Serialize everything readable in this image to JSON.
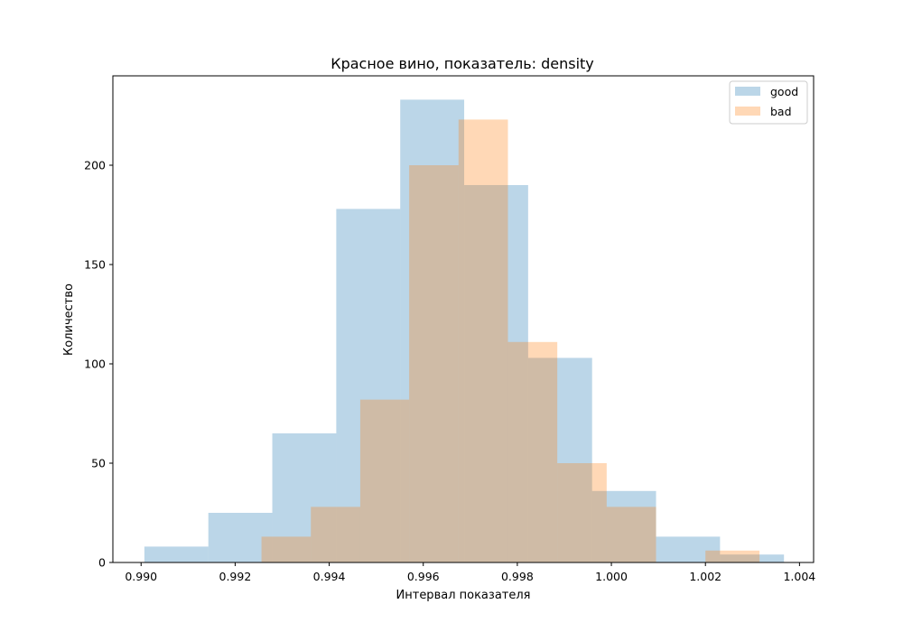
{
  "chart_data": {
    "type": "histogram",
    "title": "Красное вино, показатель: density",
    "xlabel": "Интервал показателя",
    "ylabel": "Количество",
    "xlim": [
      0.9894,
      1.0043
    ],
    "ylim": [
      0,
      245
    ],
    "x_ticks": [
      0.99,
      0.992,
      0.994,
      0.996,
      0.998,
      1.0,
      1.002,
      1.004
    ],
    "x_tick_labels": [
      "0.990",
      "0.992",
      "0.994",
      "0.996",
      "0.998",
      "1.000",
      "1.002",
      "1.004"
    ],
    "y_ticks": [
      0,
      50,
      100,
      150,
      200
    ],
    "y_tick_labels": [
      "0",
      "50",
      "100",
      "150",
      "200"
    ],
    "grid": false,
    "legend": {
      "position": "top-right"
    },
    "series": [
      {
        "name": "good",
        "color": "#1f77b4",
        "alpha": 0.3,
        "bin_edges": [
          0.99007,
          0.99143,
          0.99279,
          0.99415,
          0.99551,
          0.99687,
          0.99823,
          0.99959,
          1.00095,
          1.00231,
          1.00367
        ],
        "counts": [
          8,
          25,
          65,
          178,
          233,
          190,
          103,
          36,
          13,
          4
        ]
      },
      {
        "name": "bad",
        "color": "#ff7f0e",
        "alpha": 0.3,
        "bin_edges": [
          0.99256,
          0.99361,
          0.99466,
          0.9957,
          0.99675,
          0.9978,
          0.99885,
          0.9999,
          1.00095,
          1.002,
          1.00315
        ],
        "counts": [
          13,
          28,
          82,
          200,
          223,
          111,
          50,
          28,
          0,
          6
        ]
      }
    ]
  }
}
